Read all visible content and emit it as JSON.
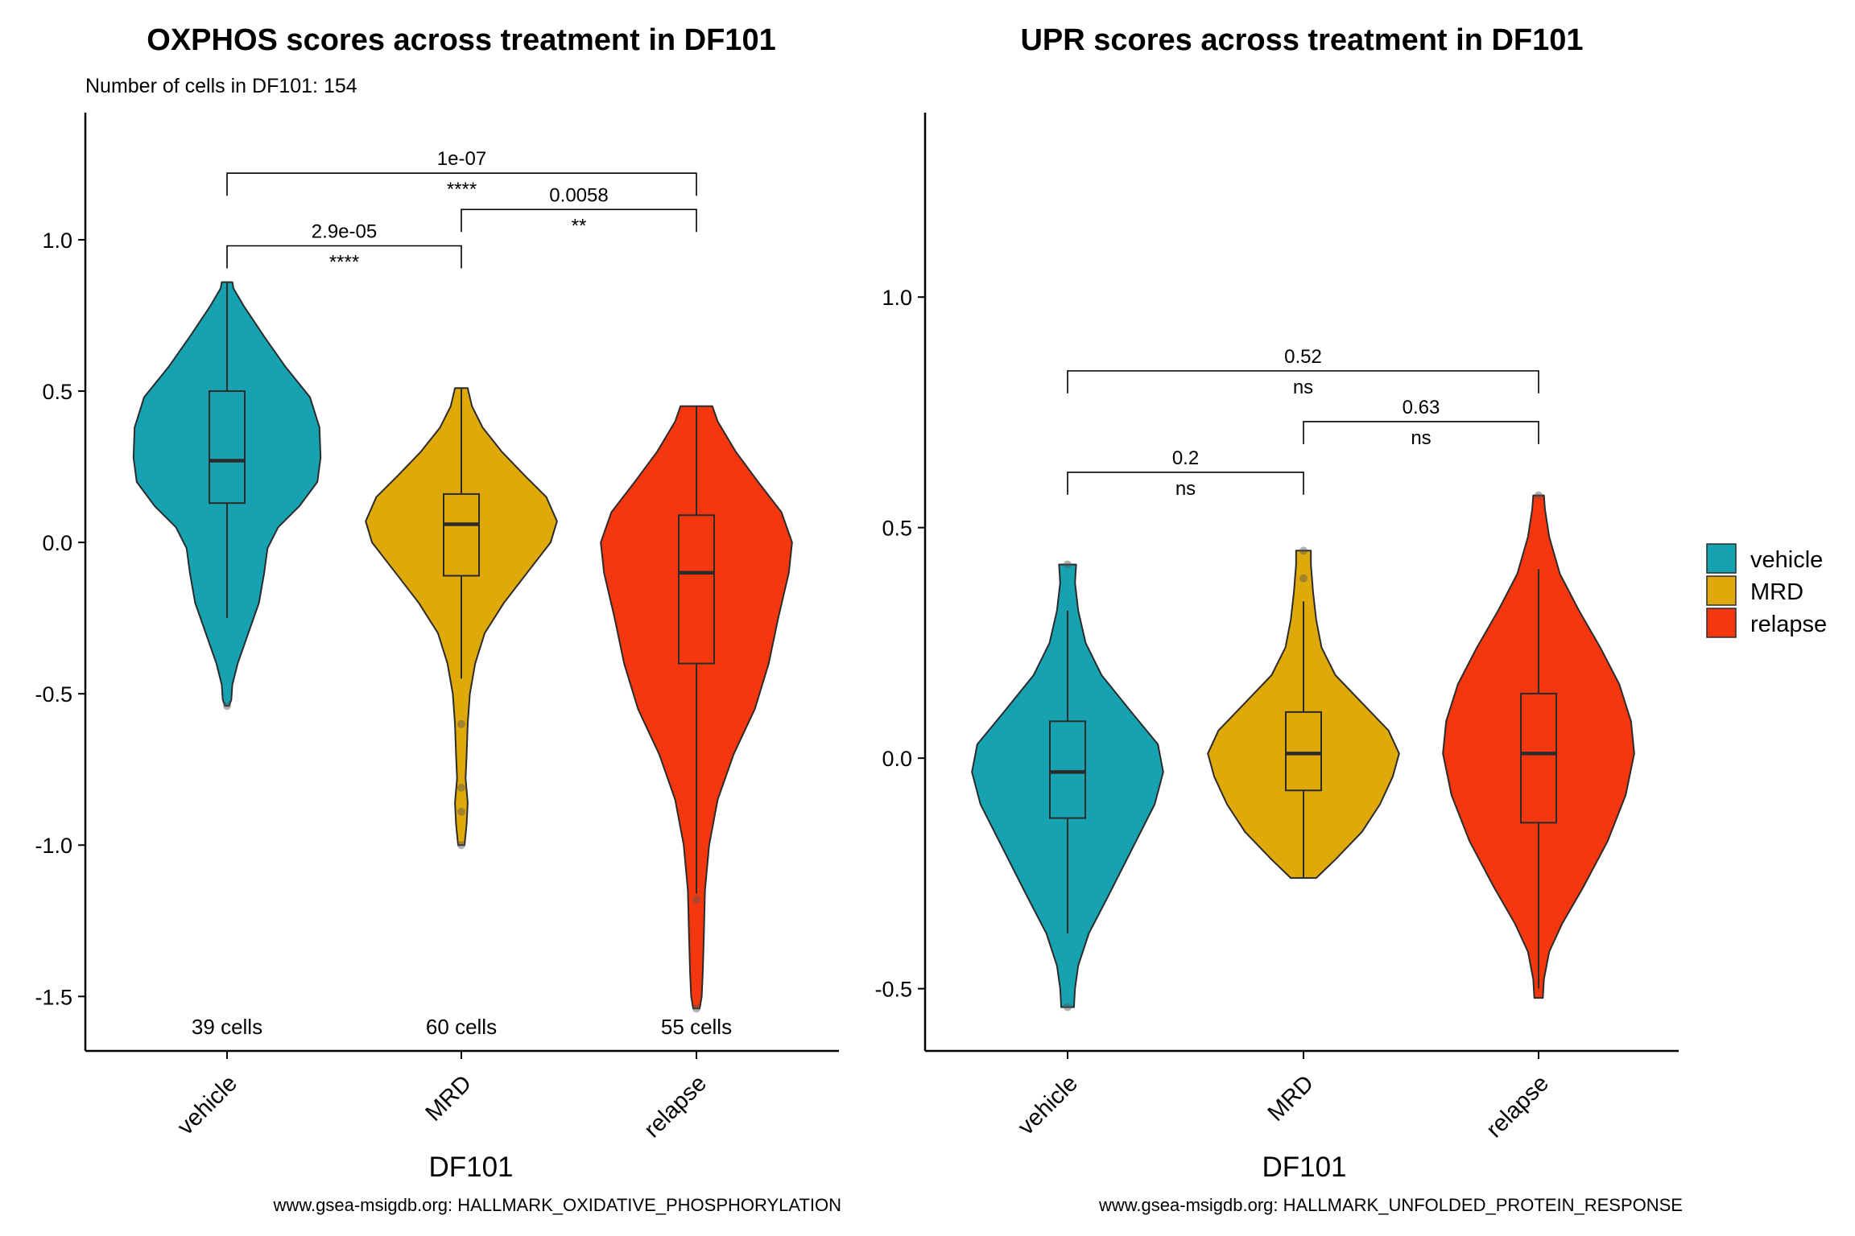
{
  "colors": {
    "vehicle": "#16A2B1",
    "MRD": "#E0A90A",
    "relapse": "#F4370E",
    "outline": "#2b2b2b",
    "bracket": "#000000"
  },
  "legend": {
    "items": [
      "vehicle",
      "MRD",
      "relapse"
    ]
  },
  "chart_data": [
    {
      "type": "violin",
      "title": "OXPHOS scores across treatment in DF101",
      "subtitle": "Number of cells in DF101: 154",
      "xlabel": "DF101",
      "ylabel": "",
      "caption": "www.gsea-msigdb.org: HALLMARK_OXIDATIVE_PHOSPHORYLATION",
      "ylim": [
        -1.68,
        1.42
      ],
      "yticks": [
        1.0,
        0.5,
        0.0,
        -0.5,
        -1.0,
        -1.5
      ],
      "ytick_labels": [
        "1.0",
        "0.5",
        "0.0",
        "-0.5",
        "-1.0",
        "-1.5"
      ],
      "categories": [
        "vehicle",
        "MRD",
        "relapse"
      ],
      "count_labels": [
        "39 cells",
        "60 cells",
        "55 cells"
      ],
      "count_y": -1.6,
      "groups": [
        {
          "name": "vehicle",
          "count": 39,
          "min": -0.54,
          "max": 0.86,
          "q1": 0.13,
          "median": 0.27,
          "q3": 0.5,
          "whisker_low": -0.25,
          "whisker_high": 0.86,
          "outliers": [
            -0.54
          ],
          "density": [
            [
              -0.54,
              0.02
            ],
            [
              -0.52,
              0.04
            ],
            [
              -0.47,
              0.05
            ],
            [
              -0.4,
              0.1
            ],
            [
              -0.3,
              0.2
            ],
            [
              -0.2,
              0.3
            ],
            [
              -0.1,
              0.35
            ],
            [
              -0.02,
              0.38
            ],
            [
              0.05,
              0.48
            ],
            [
              0.12,
              0.68
            ],
            [
              0.2,
              0.85
            ],
            [
              0.28,
              0.88
            ],
            [
              0.38,
              0.87
            ],
            [
              0.48,
              0.78
            ],
            [
              0.58,
              0.55
            ],
            [
              0.68,
              0.35
            ],
            [
              0.78,
              0.16
            ],
            [
              0.84,
              0.06
            ],
            [
              0.86,
              0.05
            ]
          ]
        },
        {
          "name": "MRD",
          "count": 60,
          "min": -1.0,
          "max": 0.51,
          "q1": -0.11,
          "median": 0.06,
          "q3": 0.16,
          "whisker_low": -0.45,
          "whisker_high": 0.51,
          "outliers": [
            -0.6,
            -0.81,
            -0.89,
            -1.0
          ],
          "density": [
            [
              -1.0,
              0.03
            ],
            [
              -0.93,
              0.05
            ],
            [
              -0.86,
              0.06
            ],
            [
              -0.78,
              0.04
            ],
            [
              -0.7,
              0.05
            ],
            [
              -0.6,
              0.06
            ],
            [
              -0.5,
              0.08
            ],
            [
              -0.4,
              0.13
            ],
            [
              -0.3,
              0.22
            ],
            [
              -0.2,
              0.4
            ],
            [
              -0.1,
              0.62
            ],
            [
              0.0,
              0.84
            ],
            [
              0.07,
              0.9
            ],
            [
              0.15,
              0.8
            ],
            [
              0.22,
              0.6
            ],
            [
              0.3,
              0.38
            ],
            [
              0.38,
              0.2
            ],
            [
              0.45,
              0.1
            ],
            [
              0.51,
              0.06
            ]
          ]
        },
        {
          "name": "relapse",
          "count": 55,
          "min": -1.54,
          "max": 0.45,
          "q1": -0.4,
          "median": -0.1,
          "q3": 0.09,
          "whisker_low": -1.16,
          "whisker_high": 0.45,
          "outliers": [
            -1.18,
            -1.54
          ],
          "density": [
            [
              -1.54,
              0.03
            ],
            [
              -1.5,
              0.05
            ],
            [
              -1.42,
              0.06
            ],
            [
              -1.3,
              0.07
            ],
            [
              -1.15,
              0.08
            ],
            [
              -1.0,
              0.12
            ],
            [
              -0.85,
              0.2
            ],
            [
              -0.7,
              0.35
            ],
            [
              -0.55,
              0.55
            ],
            [
              -0.4,
              0.68
            ],
            [
              -0.25,
              0.77
            ],
            [
              -0.1,
              0.87
            ],
            [
              0.0,
              0.9
            ],
            [
              0.1,
              0.8
            ],
            [
              0.2,
              0.58
            ],
            [
              0.3,
              0.37
            ],
            [
              0.4,
              0.2
            ],
            [
              0.45,
              0.15
            ]
          ]
        }
      ],
      "comparisons": [
        {
          "from": 0,
          "to": 1,
          "p": "2.9e-05",
          "signif": "****",
          "y": 0.98
        },
        {
          "from": 1,
          "to": 2,
          "p": "0.0058",
          "signif": "**",
          "y": 1.1
        },
        {
          "from": 0,
          "to": 2,
          "p": "1e-07",
          "signif": "****",
          "y": 1.22
        }
      ]
    },
    {
      "type": "violin",
      "title": "UPR scores across treatment in DF101",
      "xlabel": "DF101",
      "ylabel": "",
      "caption": "www.gsea-msigdb.org: HALLMARK_UNFOLDED_PROTEIN_RESPONSE",
      "ylim": [
        -0.635,
        1.4
      ],
      "yticks": [
        1.0,
        0.5,
        0.0,
        -0.5
      ],
      "ytick_labels": [
        "1.0",
        "0.5",
        "0.0",
        "-0.5"
      ],
      "categories": [
        "vehicle",
        "MRD",
        "relapse"
      ],
      "groups": [
        {
          "name": "vehicle",
          "min": -0.54,
          "max": 0.42,
          "q1": -0.13,
          "median": -0.03,
          "q3": 0.08,
          "whisker_low": -0.38,
          "whisker_high": 0.32,
          "outliers": [
            0.42,
            -0.54
          ],
          "density": [
            [
              -0.54,
              0.06
            ],
            [
              -0.5,
              0.07
            ],
            [
              -0.45,
              0.1
            ],
            [
              -0.38,
              0.2
            ],
            [
              -0.3,
              0.38
            ],
            [
              -0.2,
              0.6
            ],
            [
              -0.1,
              0.82
            ],
            [
              -0.03,
              0.9
            ],
            [
              0.03,
              0.85
            ],
            [
              0.1,
              0.6
            ],
            [
              0.18,
              0.32
            ],
            [
              0.25,
              0.17
            ],
            [
              0.32,
              0.1
            ],
            [
              0.38,
              0.07
            ],
            [
              0.42,
              0.08
            ]
          ]
        },
        {
          "name": "MRD",
          "min": -0.26,
          "max": 0.45,
          "q1": -0.07,
          "median": 0.01,
          "q3": 0.1,
          "whisker_low": -0.26,
          "whisker_high": 0.34,
          "outliers": [
            0.45,
            0.39
          ],
          "density": [
            [
              -0.26,
              0.12
            ],
            [
              -0.22,
              0.3
            ],
            [
              -0.16,
              0.55
            ],
            [
              -0.1,
              0.72
            ],
            [
              -0.04,
              0.84
            ],
            [
              0.01,
              0.9
            ],
            [
              0.06,
              0.8
            ],
            [
              0.12,
              0.55
            ],
            [
              0.18,
              0.3
            ],
            [
              0.24,
              0.17
            ],
            [
              0.3,
              0.12
            ],
            [
              0.36,
              0.09
            ],
            [
              0.42,
              0.07
            ],
            [
              0.45,
              0.07
            ]
          ]
        },
        {
          "name": "relapse",
          "min": -0.52,
          "max": 0.57,
          "q1": -0.14,
          "median": 0.01,
          "q3": 0.14,
          "whisker_low": -0.5,
          "whisker_high": 0.41,
          "outliers": [
            0.57
          ],
          "density": [
            [
              -0.52,
              0.04
            ],
            [
              -0.48,
              0.05
            ],
            [
              -0.42,
              0.1
            ],
            [
              -0.36,
              0.22
            ],
            [
              -0.28,
              0.42
            ],
            [
              -0.18,
              0.65
            ],
            [
              -0.08,
              0.82
            ],
            [
              0.01,
              0.9
            ],
            [
              0.08,
              0.87
            ],
            [
              0.16,
              0.76
            ],
            [
              0.24,
              0.58
            ],
            [
              0.32,
              0.38
            ],
            [
              0.4,
              0.2
            ],
            [
              0.48,
              0.1
            ],
            [
              0.54,
              0.06
            ],
            [
              0.57,
              0.05
            ]
          ]
        }
      ],
      "comparisons": [
        {
          "from": 0,
          "to": 1,
          "p": "0.2",
          "signif": "ns",
          "y": 0.62
        },
        {
          "from": 1,
          "to": 2,
          "p": "0.63",
          "signif": "ns",
          "y": 0.73
        },
        {
          "from": 0,
          "to": 2,
          "p": "0.52",
          "signif": "ns",
          "y": 0.84
        }
      ]
    }
  ]
}
